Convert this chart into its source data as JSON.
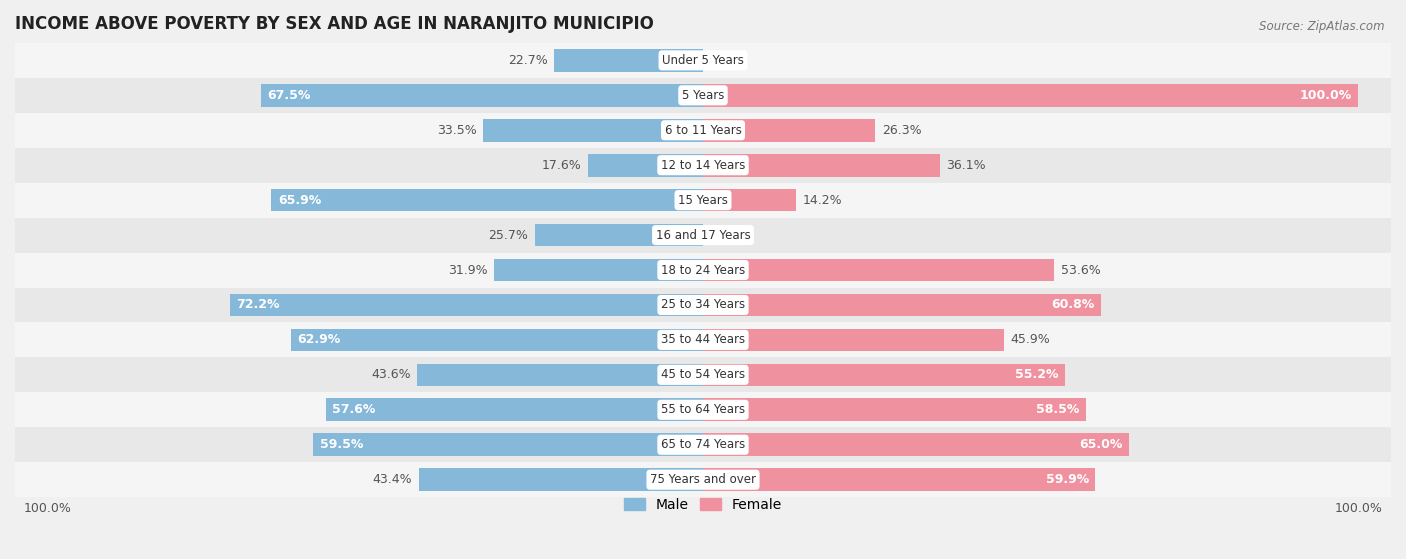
{
  "title": "INCOME ABOVE POVERTY BY SEX AND AGE IN NARANJITO MUNICIPIO",
  "source": "Source: ZipAtlas.com",
  "categories": [
    "Under 5 Years",
    "5 Years",
    "6 to 11 Years",
    "12 to 14 Years",
    "15 Years",
    "16 and 17 Years",
    "18 to 24 Years",
    "25 to 34 Years",
    "35 to 44 Years",
    "45 to 54 Years",
    "55 to 64 Years",
    "65 to 74 Years",
    "75 Years and over"
  ],
  "male": [
    22.7,
    67.5,
    33.5,
    17.6,
    65.9,
    25.7,
    31.9,
    72.2,
    62.9,
    43.6,
    57.6,
    59.5,
    43.4
  ],
  "female": [
    0.0,
    100.0,
    26.3,
    36.1,
    14.2,
    0.0,
    53.6,
    60.8,
    45.9,
    55.2,
    58.5,
    65.0,
    59.9
  ],
  "male_color": "#85b8d9",
  "female_color": "#f0919f",
  "male_label": "Male",
  "female_label": "Female",
  "background_color": "#f0f0f0",
  "row_bg_odd": "#f5f5f5",
  "row_bg_even": "#e8e8e8",
  "max_value": 100.0,
  "bar_height": 0.65,
  "title_fontsize": 12,
  "label_fontsize": 9,
  "tick_fontsize": 9,
  "source_fontsize": 8.5
}
